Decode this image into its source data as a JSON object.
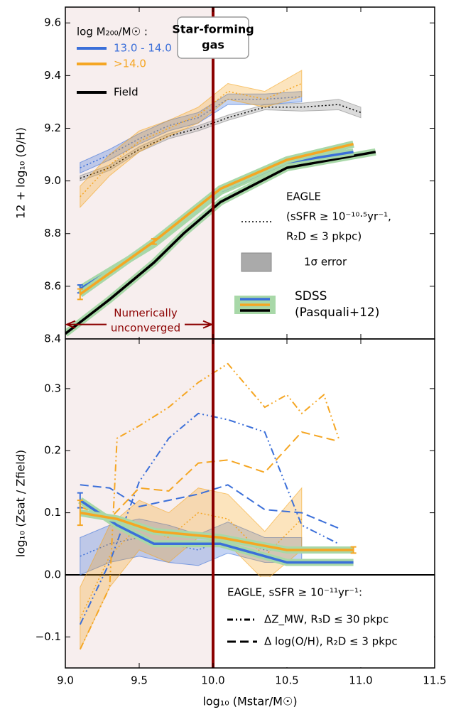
{
  "chart_data": [
    {
      "type": "line",
      "ylabel": "12 + log₁₀ (O/H)",
      "xlim": [
        9.0,
        11.5
      ],
      "xticks": [
        {
          "value": 9,
          "label": "9.0"
        },
        9.5,
        {
          "value": 10,
          "label": "10.0"
        },
        10.5,
        {
          "value": 11,
          "label": "11.0"
        },
        11.5
      ],
      "ylim": [
        8.4,
        9.66
      ],
      "yticks": [
        8.4,
        8.6,
        8.8,
        {
          "value": 9,
          "label": "9.0"
        },
        9.2,
        9.4,
        9.6
      ],
      "shaded_region": [
        9.0,
        10.0
      ],
      "vline": 10.0,
      "arrow": {
        "x": [
          9.0,
          10.0
        ],
        "y": 8.455
      },
      "annotations": {
        "panel_title": [
          "Star-forming",
          "gas"
        ],
        "unconverged": [
          "Numerically",
          "unconverged"
        ],
        "eagle": [
          "EAGLE",
          "(sSFR ≥ 10⁻¹⁰·⁵yr⁻¹,",
          "R₂D ≤ 3 pkpc)"
        ],
        "error": "1σ error",
        "sdss": [
          "SDSS",
          "(Pasquali+12)"
        ]
      },
      "legend": {
        "title": "log M₂₀₀/M☉ :",
        "entries": [
          {
            "label": "13.0 - 14.0",
            "color": "#3b6fd9"
          },
          {
            "label": ">14.0",
            "color": "#f5a623"
          },
          {
            "label": "Field",
            "color": "#000000"
          }
        ]
      },
      "series": [
        {
          "color": "#000000",
          "style": "dotted",
          "x": [
            9.1,
            9.3,
            9.5,
            9.7,
            9.9,
            10.1,
            10.35,
            10.6,
            10.85,
            11.0
          ],
          "values": [
            9.01,
            9.05,
            9.12,
            9.17,
            9.2,
            9.24,
            9.28,
            9.28,
            9.29,
            9.26
          ],
          "error": [
            0.01,
            0.01,
            0.01,
            0.01,
            0.01,
            0.01,
            0.01,
            0.015,
            0.02,
            0.02
          ]
        },
        {
          "color": "#3b6fd9",
          "style": "dotted",
          "x": [
            9.1,
            9.3,
            9.5,
            9.7,
            9.9,
            10.1,
            10.35,
            10.6
          ],
          "values": [
            9.05,
            9.1,
            9.16,
            9.21,
            9.24,
            9.31,
            9.31,
            9.32
          ],
          "error": [
            0.02,
            0.02,
            0.02,
            0.02,
            0.02,
            0.02,
            0.02,
            0.02
          ]
        },
        {
          "color": "#f5a623",
          "style": "dotted",
          "x": [
            9.1,
            9.3,
            9.5,
            9.7,
            9.9,
            10.1,
            10.35,
            10.6
          ],
          "values": [
            8.94,
            9.06,
            9.15,
            9.2,
            9.25,
            9.34,
            9.31,
            9.37
          ],
          "error": [
            0.04,
            0.04,
            0.04,
            0.03,
            0.03,
            0.03,
            0.03,
            0.05
          ]
        },
        {
          "color": "#000000",
          "style": "sdss",
          "x": [
            9.0,
            9.3,
            9.6,
            9.8,
            10.05,
            10.5,
            11.1
          ],
          "values": [
            8.42,
            8.55,
            8.69,
            8.8,
            8.92,
            9.05,
            9.11
          ]
        },
        {
          "color": "#3b6fd9",
          "style": "sdss",
          "x": [
            9.1,
            9.6,
            10.05,
            10.5,
            10.95
          ],
          "values": [
            8.59,
            8.76,
            8.96,
            9.07,
            9.11
          ],
          "yerr": [
            0.015,
            null,
            null,
            null,
            null
          ]
        },
        {
          "color": "#f5a623",
          "style": "sdss",
          "x": [
            9.1,
            9.6,
            10.05,
            10.5,
            10.95
          ],
          "values": [
            8.57,
            8.77,
            8.97,
            9.08,
            9.14
          ],
          "yerr": [
            0.02,
            0.01,
            null,
            null,
            null
          ]
        }
      ]
    },
    {
      "type": "line",
      "xlabel": "log₁₀ (Mstar/M☉)",
      "ylabel": "log₁₀ (Zsat / Zfield)",
      "xlim": [
        9.0,
        11.5
      ],
      "xticks": [
        {
          "value": 9,
          "label": "9.0"
        },
        9.5,
        {
          "value": 10,
          "label": "10.0"
        },
        10.5,
        {
          "value": 11,
          "label": "11.0"
        },
        11.5
      ],
      "ylim": [
        -0.15,
        0.38
      ],
      "yticks": [
        {
          "value": -0.1,
          "label": "−0.1"
        },
        {
          "value": 0,
          "label": "0.0"
        },
        0.1,
        0.2,
        0.3
      ],
      "shaded_region": [
        9.0,
        10.0
      ],
      "vline": 10.0,
      "hline": 0,
      "legend": {
        "title": "EAGLE, sSFR ≥ 10⁻¹¹yr⁻¹:",
        "entries": [
          {
            "label": "ΔZ_MW, R₃D ≤ 30 pkpc",
            "style": "dashdot"
          },
          {
            "label": "Δ log(O/H), R₂D ≤ 3 pkpc",
            "style": "dashed"
          }
        ]
      },
      "series": [
        {
          "color": "#3b6fd9",
          "style": "dotted",
          "x": [
            9.1,
            9.3,
            9.5,
            9.7,
            9.9,
            10.1,
            10.35,
            10.6
          ],
          "values": [
            0.03,
            0.05,
            0.06,
            0.05,
            0.04,
            0.06,
            0.04,
            0.04
          ],
          "error": [
            0.03,
            0.03,
            0.03,
            0.03,
            0.025,
            0.025,
            0.02,
            0.02
          ]
        },
        {
          "color": "#f5a623",
          "style": "dotted",
          "x": [
            9.1,
            9.3,
            9.5,
            9.7,
            9.9,
            10.1,
            10.35,
            10.6
          ],
          "values": [
            -0.07,
            0.03,
            0.08,
            0.06,
            0.1,
            0.09,
            0.03,
            0.09
          ],
          "error": [
            0.05,
            0.05,
            0.04,
            0.04,
            0.04,
            0.04,
            0.04,
            0.05
          ]
        },
        {
          "color": "#3b6fd9",
          "style": "dashdot",
          "x": [
            9.1,
            9.3,
            9.5,
            9.7,
            9.9,
            10.1,
            10.35,
            10.6,
            10.85
          ],
          "values": [
            -0.08,
            0.02,
            0.15,
            0.22,
            0.26,
            0.25,
            0.23,
            0.08,
            0.05
          ]
        },
        {
          "color": "#f5a623",
          "style": "dashdot",
          "x": [
            9.1,
            9.3,
            9.35,
            9.5,
            9.7,
            9.9,
            10.1,
            10.35,
            10.5,
            10.6,
            10.75,
            10.85
          ],
          "values": [
            -0.12,
            -0.02,
            0.22,
            0.24,
            0.27,
            0.31,
            0.34,
            0.27,
            0.29,
            0.26,
            0.29,
            0.22
          ]
        },
        {
          "color": "#3b6fd9",
          "style": "dashed",
          "x": [
            9.1,
            9.3,
            9.5,
            9.7,
            9.9,
            10.1,
            10.35,
            10.6,
            10.85
          ],
          "values": [
            0.145,
            0.14,
            0.11,
            0.12,
            0.13,
            0.145,
            0.105,
            0.1,
            0.075
          ]
        },
        {
          "color": "#f5a623",
          "style": "dashed",
          "x": [
            9.1,
            9.3,
            9.5,
            9.7,
            9.9,
            10.1,
            10.35,
            10.6,
            10.85
          ],
          "values": [
            0.11,
            0.09,
            0.14,
            0.135,
            0.18,
            0.185,
            0.165,
            0.23,
            0.215
          ]
        },
        {
          "color": "#3b6fd9",
          "style": "sdss",
          "x": [
            9.1,
            9.35,
            9.6,
            10.05,
            10.5,
            10.95
          ],
          "values": [
            0.12,
            0.08,
            0.05,
            0.05,
            0.02,
            0.02
          ],
          "yerr": [
            0.012,
            null,
            null,
            null,
            null,
            null
          ]
        },
        {
          "color": "#f5a623",
          "style": "sdss",
          "x": [
            9.1,
            9.35,
            9.6,
            10.05,
            10.5,
            10.95
          ],
          "values": [
            0.1,
            0.09,
            0.07,
            0.06,
            0.04,
            0.04
          ],
          "yerr": [
            0.02,
            null,
            null,
            null,
            null,
            0.005
          ]
        }
      ]
    }
  ]
}
